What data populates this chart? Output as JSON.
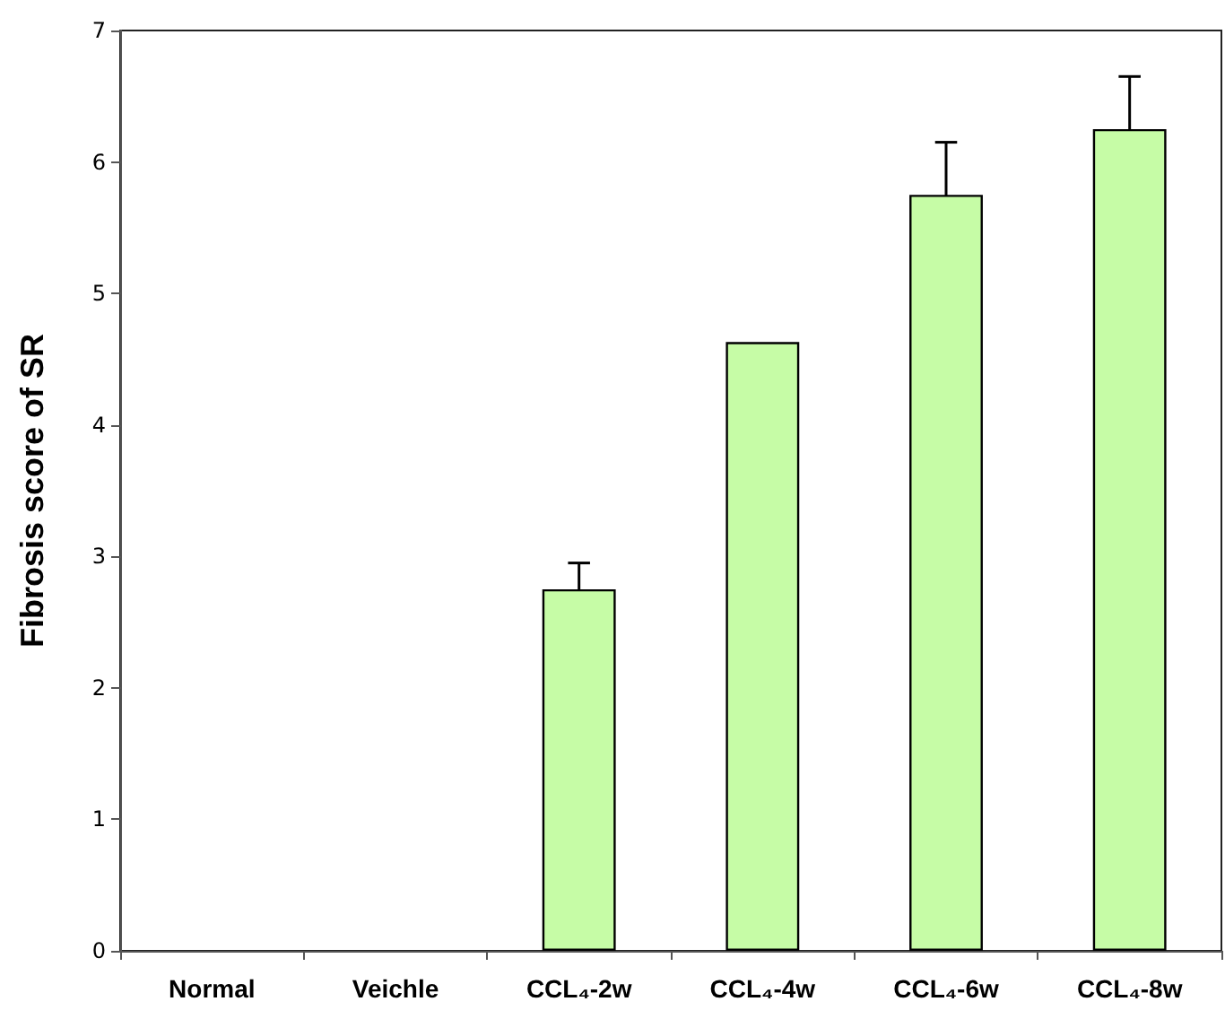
{
  "chart_data": {
    "type": "bar",
    "ylabel": "Fibrosis score of SR",
    "categories": [
      "Normal",
      "Veichle",
      "CCL₄-2w",
      "CCL₄-4w",
      "CCL₄-6w",
      "CCL₄-8w"
    ],
    "values": [
      0,
      0,
      2.75,
      4.63,
      5.75,
      6.25
    ],
    "errors": [
      null,
      null,
      0.2,
      null,
      0.4,
      0.4
    ],
    "color": "#c6fca6",
    "ylim": [
      0,
      7
    ],
    "yticks": [
      0,
      1,
      2,
      3,
      4,
      5,
      6,
      7
    ],
    "grid": false
  }
}
